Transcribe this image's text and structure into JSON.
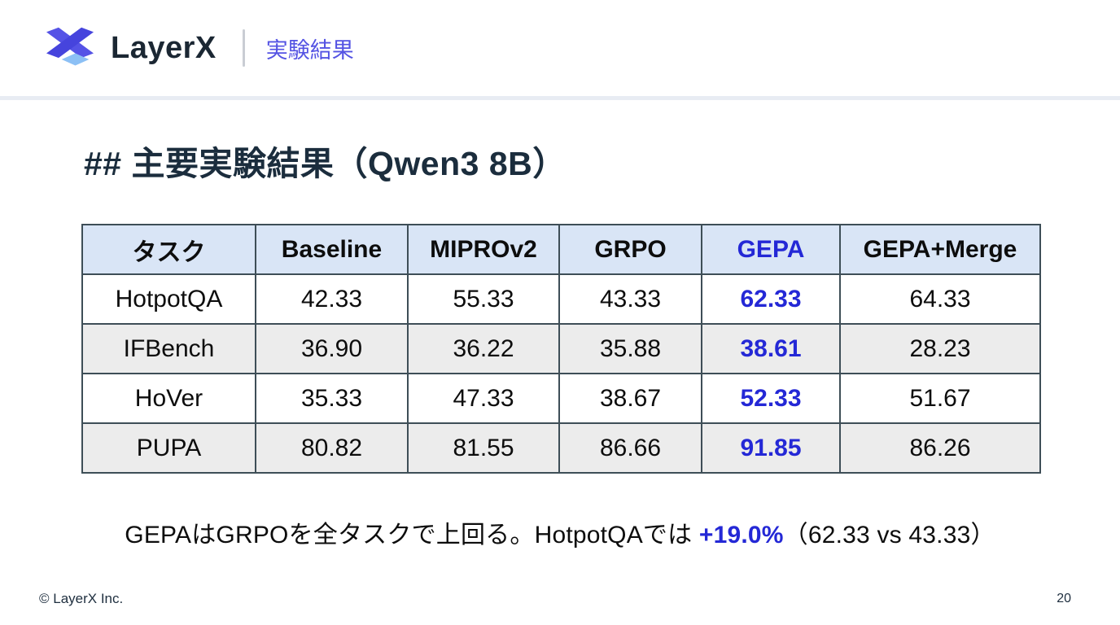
{
  "colors": {
    "accent_blue": "#2428d6",
    "brand_navy": "#1b2733",
    "section_indigo": "#5453e3",
    "table_header_bg": "#d9e5f6",
    "alt_row_bg": "#ececec",
    "table_border": "#3e4e57",
    "logo_indigo": "#5553e6",
    "logo_indigo_dark": "#4644dd",
    "logo_light_blue": "#8cc0f5",
    "header_band": "#e8ecf3"
  },
  "header": {
    "brand": "LayerX",
    "logo_icon": "layerx-x-mark",
    "section_label": "実験結果"
  },
  "slide": {
    "title": "## 主要実験結果（Qwen3 8B）",
    "table": {
      "columns": [
        "タスク",
        "Baseline",
        "MIPROv2",
        "GRPO",
        "GEPA",
        "GEPA+Merge"
      ],
      "highlight_column_index": 4,
      "rows": [
        {
          "task": "HotpotQA",
          "values": [
            "42.33",
            "55.33",
            "43.33",
            "62.33",
            "64.33"
          ]
        },
        {
          "task": "IFBench",
          "values": [
            "36.90",
            "36.22",
            "35.88",
            "38.61",
            "28.23"
          ]
        },
        {
          "task": "HoVer",
          "values": [
            "35.33",
            "47.33",
            "38.67",
            "52.33",
            "51.67"
          ]
        },
        {
          "task": "PUPA",
          "values": [
            "80.82",
            "81.55",
            "86.66",
            "91.85",
            "86.26"
          ]
        }
      ]
    },
    "summary": {
      "prefix": "GEPAはGRPOを全タスクで上回る。HotpotQAでは ",
      "highlight": "+19.0%",
      "suffix": "（62.33 vs 43.33）"
    }
  },
  "footer": {
    "copyright": "© LayerX Inc.",
    "page_number": "20"
  }
}
